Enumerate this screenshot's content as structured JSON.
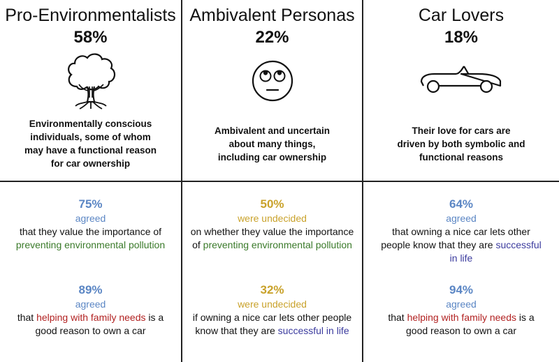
{
  "colors": {
    "agreed": "#5b86c4",
    "undecided": "#c9a22b",
    "environment": "#3a7a2a",
    "family": "#b22222",
    "success": "#3b3b9e"
  },
  "personas": [
    {
      "title": "Pro-Environmentalists",
      "percent": "58%",
      "icon": "tree-icon",
      "description": [
        "Environmentally conscious",
        "individuals, some of whom",
        "may have a functional reason",
        "for car ownership"
      ],
      "stats": [
        {
          "percent": "75%",
          "label": "agreed",
          "lines": [
            {
              "segments": [
                {
                  "text": "that they value the importance of"
                }
              ]
            },
            {
              "segments": [
                {
                  "text": "preventing environmental pollution",
                  "color": "environment"
                }
              ]
            }
          ]
        },
        {
          "percent": "89%",
          "label": "agreed",
          "lines": [
            {
              "segments": [
                {
                  "text": "that "
                },
                {
                  "text": "helping with family needs",
                  "color": "family"
                },
                {
                  "text": " is a"
                }
              ]
            },
            {
              "segments": [
                {
                  "text": "good reason to own a car"
                }
              ]
            }
          ]
        }
      ]
    },
    {
      "title": "Ambivalent Personas",
      "percent": "22%",
      "icon": "rolling-eyes-face-icon",
      "description": [
        "Ambivalent and uncertain",
        "about many things,",
        "including car ownership"
      ],
      "stats": [
        {
          "percent": "50%",
          "label": "were undecided",
          "lines": [
            {
              "segments": [
                {
                  "text": "on whether they value the importance"
                }
              ]
            },
            {
              "segments": [
                {
                  "text": "of "
                },
                {
                  "text": "preventing environmental pollution",
                  "color": "environment"
                }
              ]
            }
          ]
        },
        {
          "percent": "32%",
          "label": "were undecided",
          "lines": [
            {
              "segments": [
                {
                  "text": "if owning a nice car lets other people"
                }
              ]
            },
            {
              "segments": [
                {
                  "text": "know that they are "
                },
                {
                  "text": "successful in life",
                  "color": "success"
                }
              ]
            }
          ]
        }
      ]
    },
    {
      "title": "Car Lovers",
      "percent": "18%",
      "icon": "convertible-car-icon",
      "description": [
        "Their love for cars are",
        "driven by both symbolic and",
        "functional reasons"
      ],
      "stats": [
        {
          "percent": "64%",
          "label": "agreed",
          "lines": [
            {
              "segments": [
                {
                  "text": "that owning a nice car lets other"
                }
              ]
            },
            {
              "segments": [
                {
                  "text": "people know that they are "
                },
                {
                  "text": "successful",
                  "color": "success"
                }
              ]
            },
            {
              "segments": [
                {
                  "text": "in life",
                  "color": "success"
                }
              ]
            }
          ]
        },
        {
          "percent": "94%",
          "label": "agreed",
          "lines": [
            {
              "segments": [
                {
                  "text": "that "
                },
                {
                  "text": "helping with family needs",
                  "color": "family"
                },
                {
                  "text": " is a"
                }
              ]
            },
            {
              "segments": [
                {
                  "text": "good reason to own a car"
                }
              ]
            }
          ]
        }
      ]
    }
  ]
}
